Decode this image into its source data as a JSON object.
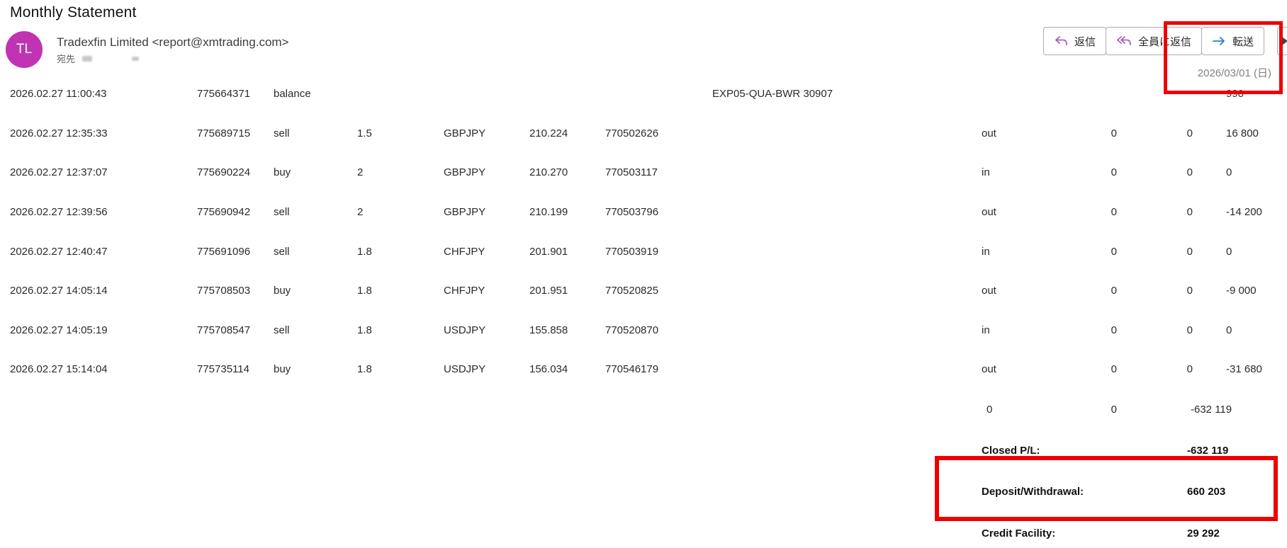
{
  "page_title": "Monthly Statement",
  "header": {
    "avatar_initials": "TL",
    "avatar_color": "#c233b4",
    "sender": "Tradexfin Limited <report@xmtrading.com>",
    "to_label": "宛先",
    "date": "2026/03/01 (日)",
    "actions": [
      {
        "label": "返信",
        "icon": "reply-icon",
        "color": "#a95cc2"
      },
      {
        "label": "全員に返信",
        "icon": "reply-all-icon",
        "color": "#a95cc2"
      },
      {
        "label": "転送",
        "icon": "forward-icon",
        "color": "#2e7bd6"
      }
    ]
  },
  "colors": {
    "annotation_red": "#ee0000"
  },
  "table": {
    "rows": [
      [
        "2026.02.27 11:00:43",
        "775664371",
        "balance",
        "",
        "",
        "",
        "",
        "EXP05-QUA-BWR 30907",
        "",
        "",
        "",
        "990"
      ],
      [
        "2026.02.27 12:35:33",
        "775689715",
        "sell",
        "1.5",
        "GBPJPY",
        "210.224",
        "770502626",
        "",
        "out",
        "0",
        "0",
        "16 800"
      ],
      [
        "2026.02.27 12:37:07",
        "775690224",
        "buy",
        "2",
        "GBPJPY",
        "210.270",
        "770503117",
        "",
        "in",
        "0",
        "0",
        "0"
      ],
      [
        "2026.02.27 12:39:56",
        "775690942",
        "sell",
        "2",
        "GBPJPY",
        "210.199",
        "770503796",
        "",
        "out",
        "0",
        "0",
        "-14 200"
      ],
      [
        "2026.02.27 12:40:47",
        "775691096",
        "sell",
        "1.8",
        "CHFJPY",
        "201.901",
        "770503919",
        "",
        "in",
        "0",
        "0",
        "0"
      ],
      [
        "2026.02.27 14:05:14",
        "775708503",
        "buy",
        "1.8",
        "CHFJPY",
        "201.951",
        "770520825",
        "",
        "out",
        "0",
        "0",
        "-9 000"
      ],
      [
        "2026.02.27 14:05:19",
        "775708547",
        "sell",
        "1.8",
        "USDJPY",
        "155.858",
        "770520870",
        "",
        "in",
        "0",
        "0",
        "0"
      ],
      [
        "2026.02.27 15:14:04",
        "775735114",
        "buy",
        "1.8",
        "USDJPY",
        "156.034",
        "770546179",
        "",
        "out",
        "0",
        "0",
        "-31 680"
      ]
    ],
    "totals": {
      "a": "0",
      "b": "0",
      "c": "-632 119"
    }
  },
  "summary": {
    "closed_pl": {
      "label": "Closed P/L:",
      "value": "-632 119"
    },
    "deposit_wd": {
      "label": "Deposit/Withdrawal:",
      "value": "660 203"
    },
    "credit": {
      "label": "Credit Facility:",
      "value": "29 292"
    }
  }
}
